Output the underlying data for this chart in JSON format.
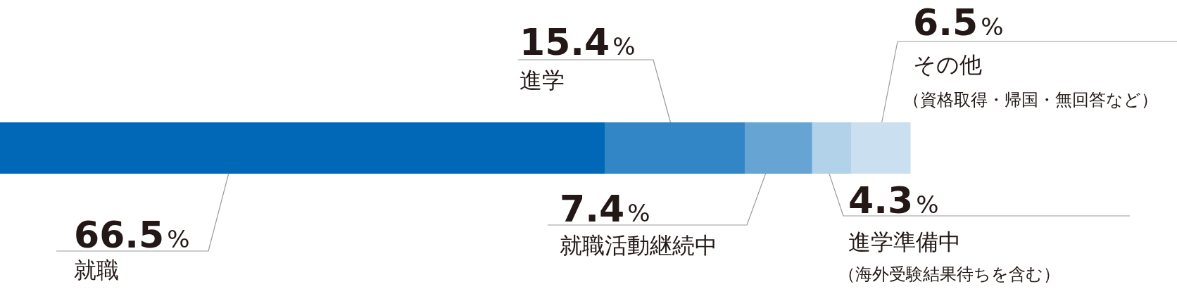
{
  "chart_data": {
    "type": "bar",
    "orientation": "horizontal",
    "stacked": true,
    "categories": [
      null
    ],
    "series": [
      {
        "name": "就職",
        "color": "#0068b7",
        "values": [
          66.5
        ],
        "value_labels": [
          "66.5%"
        ]
      },
      {
        "name": "進学",
        "color": "#3386c6",
        "values": [
          15.4
        ],
        "value_labels": [
          "15.4%"
        ]
      },
      {
        "name": "就職活動継続中",
        "color": "#66a4d3",
        "values": [
          7.4
        ],
        "value_labels": [
          "7.4%"
        ]
      },
      {
        "name": "進学準備中",
        "color": "#b2d2ea",
        "values": [
          4.3
        ],
        "value_labels": [
          "4.3%"
        ]
      },
      {
        "name": "その他",
        "color": "#cadff0",
        "values": [
          6.5
        ],
        "value_labels": [
          "6.5%"
        ]
      }
    ],
    "annotations": [
      "（海外受験結果待ちを含む）",
      "（資格取得・帰国・無回答など）"
    ]
  }
}
